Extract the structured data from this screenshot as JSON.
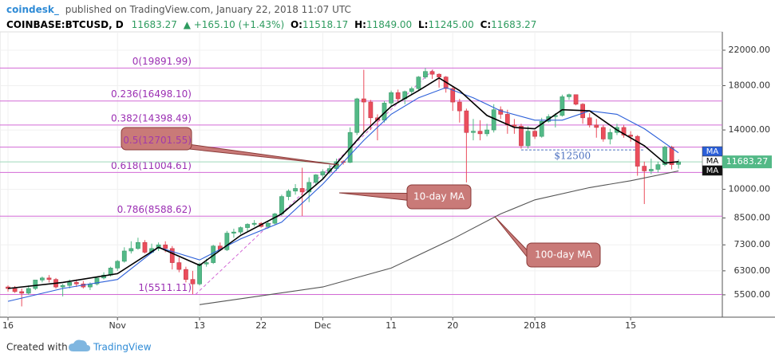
{
  "header": {
    "author": "coindesk_",
    "published": "published on TradingView.com, January 22, 2018 11:07 UTC",
    "symbol": "COINBASE:BTCUSD, D",
    "price": "11683.27",
    "change": "▲ +165.10 (+1.43%)",
    "open_label": "O:",
    "open": "11518.17",
    "high_label": "H:",
    "high": "11849.00",
    "low_label": "L:",
    "low": "11245.00",
    "close_label": "C:",
    "close": "11683.27"
  },
  "chart_data": {
    "type": "candlestick",
    "log_scale": true,
    "up_color": "#53b987",
    "down_color": "#eb4d5c",
    "xlim": [
      -1.17,
      104.4
    ],
    "ylim": [
      4845,
      24410
    ],
    "xticks": [
      {
        "value": 0,
        "label": "16"
      },
      {
        "value": 16,
        "label": "Nov"
      },
      {
        "value": 28,
        "label": "13"
      },
      {
        "value": 37,
        "label": "22"
      },
      {
        "value": 46,
        "label": "Dec"
      },
      {
        "value": 56,
        "label": "11"
      },
      {
        "value": 65,
        "label": "20"
      },
      {
        "value": 77,
        "label": "2018"
      },
      {
        "value": 91,
        "label": "15"
      }
    ],
    "yticks": [
      {
        "value": 22000,
        "label": "22000.00"
      },
      {
        "value": 18000,
        "label": "18000.00"
      },
      {
        "value": 14000,
        "label": "14000.00"
      },
      {
        "value": 10000,
        "label": "10000.00"
      },
      {
        "value": 8500,
        "label": "8500.00"
      },
      {
        "value": 7300,
        "label": "7300.00"
      },
      {
        "value": 6300,
        "label": "6300.00"
      },
      {
        "value": 5500,
        "label": "5500.00"
      }
    ],
    "grid": true,
    "candles": [
      [
        5750,
        5800,
        5600,
        5700
      ],
      [
        5700,
        5780,
        5560,
        5600
      ],
      [
        5600,
        5700,
        5150,
        5550
      ],
      [
        5550,
        5800,
        5500,
        5700
      ],
      [
        5700,
        5900,
        5650,
        5980
      ],
      [
        5980,
        6100,
        5900,
        6050
      ],
      [
        6050,
        6150,
        5900,
        6000
      ],
      [
        6000,
        6050,
        5700,
        5750
      ],
      [
        5750,
        5850,
        5450,
        5800
      ],
      [
        5800,
        6000,
        5700,
        5900
      ],
      [
        5900,
        6000,
        5750,
        5850
      ],
      [
        5850,
        5950,
        5700,
        5750
      ],
      [
        5750,
        5900,
        5650,
        5850
      ],
      [
        5850,
        6100,
        5800,
        6050
      ],
      [
        6050,
        6250,
        6000,
        6150
      ],
      [
        6150,
        6450,
        6100,
        6400
      ],
      [
        6400,
        6700,
        6300,
        6650
      ],
      [
        6650,
        7200,
        6600,
        7050
      ],
      [
        7050,
        7450,
        6950,
        7150
      ],
      [
        7150,
        7600,
        7100,
        7400
      ],
      [
        7400,
        7500,
        6950,
        7000
      ],
      [
        7000,
        7350,
        6950,
        7150
      ],
      [
        7150,
        7400,
        7050,
        7300
      ],
      [
        7300,
        7450,
        7000,
        7150
      ],
      [
        7150,
        7250,
        6350,
        6600
      ],
      [
        6600,
        6800,
        6250,
        6350
      ],
      [
        6350,
        6450,
        5900,
        6000
      ],
      [
        6000,
        6300,
        5520,
        5850
      ],
      [
        5850,
        6600,
        5800,
        6550
      ],
      [
        6550,
        6750,
        6450,
        6600
      ],
      [
        6600,
        7300,
        6550,
        7250
      ],
      [
        7250,
        7400,
        7050,
        7100
      ],
      [
        7100,
        7900,
        7050,
        7800
      ],
      [
        7800,
        8000,
        7600,
        7850
      ],
      [
        7850,
        8100,
        7750,
        8050
      ],
      [
        8050,
        8250,
        7850,
        8200
      ],
      [
        8200,
        8400,
        8100,
        8250
      ],
      [
        8250,
        8300,
        8050,
        8100
      ],
      [
        8100,
        8350,
        8000,
        8250
      ],
      [
        8250,
        8750,
        8200,
        8700
      ],
      [
        8700,
        9700,
        8600,
        9600
      ],
      [
        9600,
        10000,
        9400,
        9900
      ],
      [
        9900,
        10300,
        9700,
        10050
      ],
      [
        10050,
        11300,
        8600,
        9850
      ],
      [
        9850,
        10700,
        9300,
        10400
      ],
      [
        10400,
        10900,
        10200,
        10850
      ],
      [
        10850,
        11200,
        10600,
        11050
      ],
      [
        11050,
        11500,
        10900,
        11250
      ],
      [
        11250,
        11900,
        11100,
        11700
      ],
      [
        11700,
        11800,
        11500,
        11650
      ],
      [
        11650,
        14200,
        11600,
        13800
      ],
      [
        13800,
        16800,
        13600,
        16700
      ],
      [
        16700,
        19700,
        13800,
        16400
      ],
      [
        16400,
        16600,
        14000,
        15000
      ],
      [
        15000,
        15300,
        13200,
        14800
      ],
      [
        14800,
        16500,
        14600,
        16300
      ],
      [
        16300,
        17500,
        16000,
        17300
      ],
      [
        17300,
        17600,
        16300,
        16700
      ],
      [
        16700,
        17500,
        16200,
        17400
      ],
      [
        17400,
        17900,
        17100,
        17700
      ],
      [
        17700,
        19000,
        17500,
        18900
      ],
      [
        18900,
        19891.99,
        18700,
        19500
      ],
      [
        19500,
        19700,
        18700,
        19200
      ],
      [
        19200,
        19300,
        17800,
        18900
      ],
      [
        18900,
        19000,
        17300,
        17700
      ],
      [
        17700,
        17900,
        15600,
        16400
      ],
      [
        16400,
        16700,
        14600,
        15600
      ],
      [
        15600,
        15800,
        10400,
        13800
      ],
      [
        13800,
        14900,
        13200,
        13900
      ],
      [
        13900,
        14800,
        13200,
        13700
      ],
      [
        13700,
        14500,
        13500,
        14000
      ],
      [
        14000,
        16200,
        13800,
        15700
      ],
      [
        15700,
        16000,
        14900,
        15300
      ],
      [
        15300,
        15700,
        13700,
        14400
      ],
      [
        14400,
        14900,
        13700,
        14300
      ],
      [
        14300,
        14500,
        12600,
        12800
      ],
      [
        12800,
        14300,
        12600,
        13900
      ],
      [
        13900,
        14000,
        13300,
        13500
      ],
      [
        13500,
        15000,
        13400,
        14700
      ],
      [
        14700,
        15300,
        14600,
        15100
      ],
      [
        15100,
        15400,
        14200,
        15200
      ],
      [
        15200,
        17100,
        15100,
        16900
      ],
      [
        16900,
        17200,
        16600,
        17100
      ],
      [
        17100,
        17100,
        16100,
        16200
      ],
      [
        16200,
        16300,
        14500,
        15000
      ],
      [
        15000,
        15400,
        14200,
        14400
      ],
      [
        14400,
        14900,
        13400,
        14200
      ],
      [
        14200,
        14400,
        13100,
        13300
      ],
      [
        13300,
        14100,
        12900,
        13800
      ],
      [
        13800,
        14500,
        13600,
        14200
      ],
      [
        14200,
        14400,
        13400,
        13600
      ],
      [
        13600,
        13900,
        13100,
        13500
      ],
      [
        13500,
        13600,
        10800,
        11400
      ],
      [
        11400,
        11700,
        9200,
        11100
      ],
      [
        11100,
        11900,
        10900,
        11200
      ],
      [
        11200,
        11700,
        11000,
        11500
      ],
      [
        11500,
        12800,
        11400,
        12700
      ],
      [
        12700,
        12800,
        11200,
        11500
      ],
      [
        11518.17,
        11849,
        11245,
        11683.27
      ]
    ],
    "series": [
      {
        "name": "MA",
        "color": "#2b5fd9",
        "label_fill": "#2b5fd9",
        "label_text": "#ffffff",
        "x": [
          0,
          8,
          16,
          22,
          28,
          34,
          40,
          46,
          52,
          56,
          60,
          64,
          68,
          72,
          77,
          81,
          85,
          89,
          93,
          98
        ],
        "values": [
          5300,
          5700,
          6000,
          7200,
          6700,
          7550,
          8300,
          10300,
          13200,
          15300,
          16800,
          17800,
          16800,
          15600,
          14800,
          14800,
          15600,
          15300,
          14100,
          12300
        ]
      },
      {
        "name": "MA",
        "color": "#000000",
        "label_fill": "#ffffff",
        "label_text": "#000000",
        "x": [
          0,
          8,
          16,
          22,
          28,
          34,
          40,
          46,
          52,
          56,
          60,
          63,
          66,
          70,
          74,
          77,
          81,
          85,
          89,
          93,
          96,
          98
        ],
        "values": [
          5700,
          5900,
          6200,
          7200,
          6500,
          7700,
          8700,
          10600,
          13800,
          16000,
          17500,
          18800,
          17500,
          15200,
          14200,
          14100,
          15700,
          15600,
          14000,
          12800,
          11600,
          11700
        ]
      },
      {
        "name": "MA",
        "color": "#555555",
        "label_fill": "#111111",
        "label_text": "#ffffff",
        "x": [
          28,
          46,
          56,
          65,
          72,
          77,
          85,
          91,
          98
        ],
        "values": [
          5200,
          5750,
          6400,
          7550,
          8700,
          9420,
          10100,
          10500,
          11100
        ]
      }
    ],
    "fib_levels": [
      {
        "label": "0(19891.99)",
        "value": 19891.99
      },
      {
        "label": "0.236(16498.10)",
        "value": 16498.1
      },
      {
        "label": "0.382(14398.49)",
        "value": 14398.49
      },
      {
        "label": "0.5(12701.55)",
        "value": 12701.55
      },
      {
        "label": "0.618(11004.61)",
        "value": 11004.61
      },
      {
        "label": "0.786(8588.62)",
        "value": 8588.62
      },
      {
        "label": "1(5511.11)",
        "value": 5511.11
      }
    ],
    "level_annotation": {
      "text": "$12500",
      "value": 12500
    },
    "callouts": [
      "10-day MA",
      "100-day MA"
    ],
    "last_price": 11683.27
  },
  "footer": {
    "created": "Created with",
    "brand": "TradingView"
  }
}
